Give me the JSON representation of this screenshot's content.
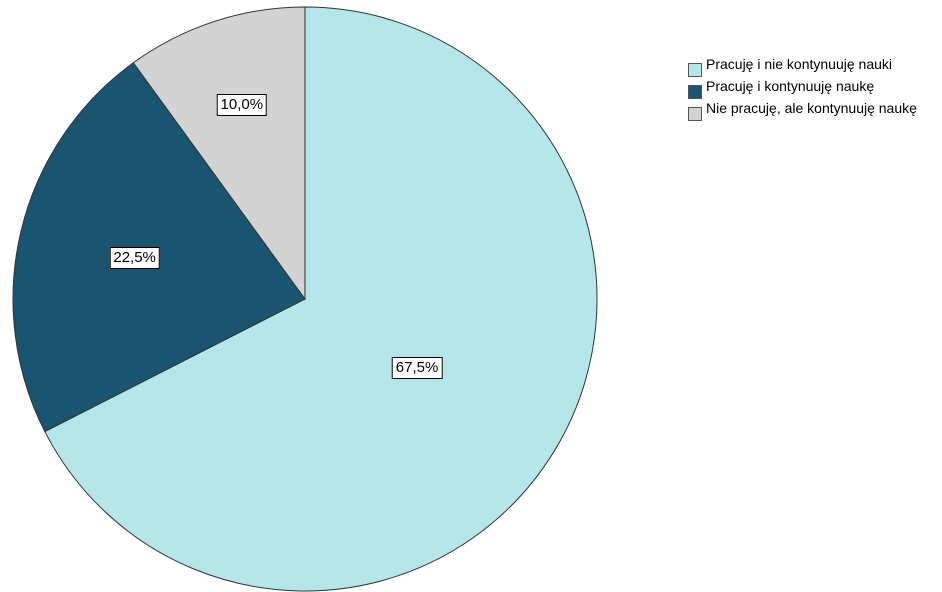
{
  "chart_data": {
    "type": "pie",
    "categories": [
      "Pracuję i nie kontynuuję nauki",
      "Pracuję i kontynuuję naukę",
      "Nie pracuję, ale kontynuuję naukę"
    ],
    "values": [
      67.5,
      22.5,
      10.0
    ],
    "data_labels": [
      "67,5%",
      "22,5%",
      "10,0%"
    ],
    "colors": [
      "#b4e6ea",
      "#1a5470",
      "#d3d3d3"
    ],
    "legend_position": "top-right"
  }
}
